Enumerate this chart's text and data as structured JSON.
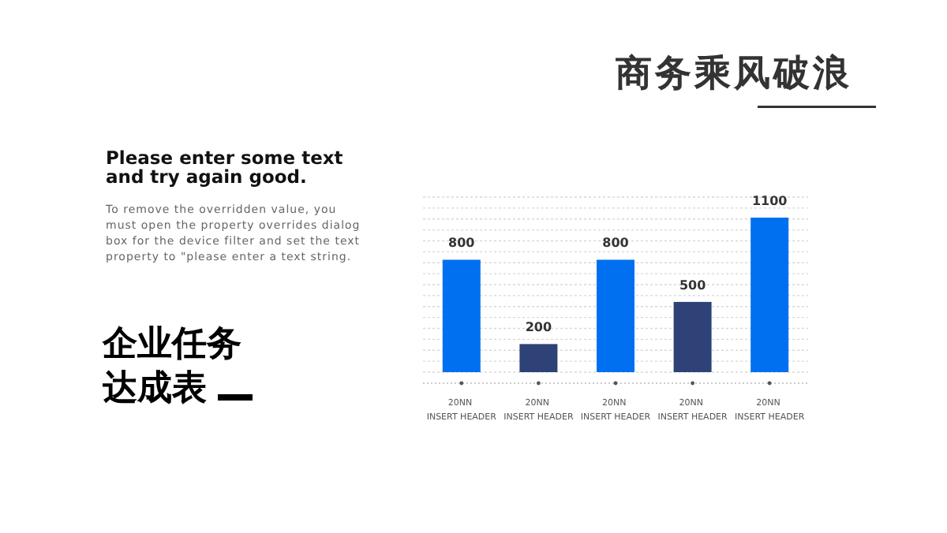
{
  "chart_data": {
    "type": "bar",
    "title": "企业任务达成表",
    "subtitle": "商务乘风破浪",
    "annotations": [
      "Please enter some text and try again good.",
      "To remove the overridden value, you must open the property overrides dialog box for the device filter and set the text property to \"please enter a text string."
    ],
    "categories": [
      "20NN INSERT HEADER",
      "20NN INSERT HEADER",
      "20NN INSERT HEADER",
      "20NN INSERT HEADER",
      "20NN INSERT HEADER"
    ],
    "values": [
      800,
      200,
      800,
      500,
      1100
    ],
    "colors": [
      "#0070f0",
      "#2e4278",
      "#0070f0",
      "#2e4278",
      "#0070f0"
    ],
    "data_labels": true,
    "grid": "y"
  }
}
